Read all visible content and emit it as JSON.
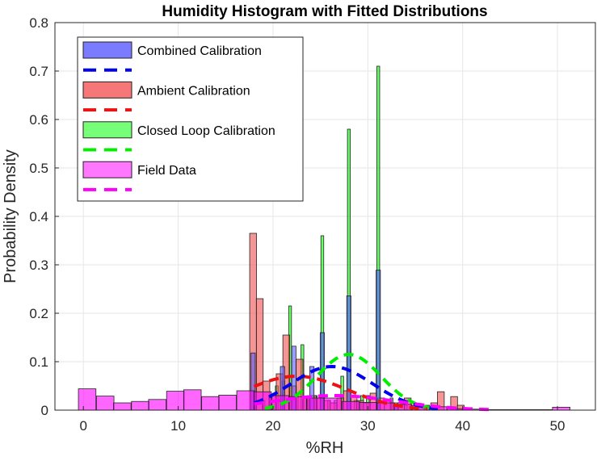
{
  "chart_data": {
    "type": "bar",
    "title": "Humidity Histogram with Fitted Distributions",
    "xlabel": "%RH",
    "ylabel": "Probability Density",
    "xlim": [
      -3,
      54
    ],
    "ylim": [
      0,
      0.8
    ],
    "xticks": [
      0,
      10,
      20,
      30,
      40,
      50
    ],
    "yticks": [
      0,
      0.1,
      0.2,
      0.3,
      0.4,
      0.5,
      0.6,
      0.7,
      0.8
    ],
    "xtick_labels": [
      "0",
      "10",
      "20",
      "30",
      "40",
      "50"
    ],
    "ytick_labels": [
      "0",
      "0.1",
      "0.2",
      "0.3",
      "0.4",
      "0.5",
      "0.6",
      "0.7",
      "0.8"
    ],
    "grid": true,
    "legend_position": "top-left",
    "series": [
      {
        "name": "Closed Loop Calibration",
        "color": "#00ff00",
        "fit_color": "#00ee00",
        "fit_mean": 28.0,
        "fit_sd": 3.4,
        "bin_width": 0.3,
        "bins": [
          {
            "x": 19.0,
            "y": 0.02
          },
          {
            "x": 19.7,
            "y": 0.03
          },
          {
            "x": 20.4,
            "y": 0.05
          },
          {
            "x": 21.1,
            "y": 0.06
          },
          {
            "x": 21.8,
            "y": 0.215
          },
          {
            "x": 22.5,
            "y": 0.03
          },
          {
            "x": 23.1,
            "y": 0.135
          },
          {
            "x": 23.8,
            "y": 0.03
          },
          {
            "x": 24.5,
            "y": 0.03
          },
          {
            "x": 25.2,
            "y": 0.36
          },
          {
            "x": 25.9,
            "y": 0.02
          },
          {
            "x": 26.6,
            "y": 0.02
          },
          {
            "x": 27.3,
            "y": 0.07
          },
          {
            "x": 28.0,
            "y": 0.58
          },
          {
            "x": 28.7,
            "y": 0.02
          },
          {
            "x": 29.4,
            "y": 0.03
          },
          {
            "x": 30.0,
            "y": 0.03
          },
          {
            "x": 31.1,
            "y": 0.71
          },
          {
            "x": 32.5,
            "y": 0.025
          },
          {
            "x": 34.0,
            "y": 0.01
          }
        ]
      },
      {
        "name": "Ambient Calibration",
        "color": "#f04e4e",
        "fit_color": "#ee1111",
        "fit_mean": 22.5,
        "fit_sd": 5.3,
        "bin_width": 0.72,
        "bins": [
          {
            "x": 17.9,
            "y": 0.365
          },
          {
            "x": 18.6,
            "y": 0.23
          },
          {
            "x": 19.3,
            "y": 0.06
          },
          {
            "x": 20.0,
            "y": 0.03
          },
          {
            "x": 20.7,
            "y": 0.075
          },
          {
            "x": 21.4,
            "y": 0.155
          },
          {
            "x": 22.1,
            "y": 0.05
          },
          {
            "x": 22.8,
            "y": 0.105
          },
          {
            "x": 23.5,
            "y": 0.025
          },
          {
            "x": 24.2,
            "y": 0.03
          },
          {
            "x": 25.0,
            "y": 0.025
          },
          {
            "x": 25.7,
            "y": 0.02
          },
          {
            "x": 26.4,
            "y": 0.015
          },
          {
            "x": 27.1,
            "y": 0.025
          },
          {
            "x": 27.8,
            "y": 0.04
          },
          {
            "x": 28.5,
            "y": 0.03
          },
          {
            "x": 29.2,
            "y": 0.02
          },
          {
            "x": 29.9,
            "y": 0.015
          },
          {
            "x": 30.6,
            "y": 0.035
          },
          {
            "x": 31.4,
            "y": 0.025
          },
          {
            "x": 32.1,
            "y": 0.02
          },
          {
            "x": 32.8,
            "y": 0.015
          },
          {
            "x": 33.5,
            "y": 0.015
          },
          {
            "x": 34.2,
            "y": 0.025
          },
          {
            "x": 35.6,
            "y": 0.01
          },
          {
            "x": 36.3,
            "y": 0.005
          },
          {
            "x": 37.0,
            "y": 0.015
          },
          {
            "x": 37.7,
            "y": 0.038
          },
          {
            "x": 39.1,
            "y": 0.028
          },
          {
            "x": 39.8,
            "y": 0.01
          }
        ]
      },
      {
        "name": "Combined Calibration",
        "color": "#5a5aff",
        "fit_color": "#0000ee",
        "fit_mean": 26.2,
        "fit_sd": 4.3,
        "bin_width": 0.45,
        "bins": [
          {
            "x": 17.9,
            "y": 0.118
          },
          {
            "x": 21.0,
            "y": 0.09
          },
          {
            "x": 22.2,
            "y": 0.132
          },
          {
            "x": 24.1,
            "y": 0.09
          },
          {
            "x": 25.2,
            "y": 0.16
          },
          {
            "x": 28.0,
            "y": 0.236
          },
          {
            "x": 31.1,
            "y": 0.289
          },
          {
            "x": 33.0,
            "y": 0.01
          }
        ]
      },
      {
        "name": "Field Data",
        "color": "#ff00ff",
        "fit_color": "#ff00ff",
        "fit_mean": 26.5,
        "fit_sd": 6.5,
        "bin_width": 1.85,
        "bins": [
          {
            "x": 0.4,
            "y": 0.044
          },
          {
            "x": 2.3,
            "y": 0.029
          },
          {
            "x": 4.1,
            "y": 0.015
          },
          {
            "x": 6.0,
            "y": 0.018
          },
          {
            "x": 7.8,
            "y": 0.022
          },
          {
            "x": 9.7,
            "y": 0.039
          },
          {
            "x": 11.5,
            "y": 0.042
          },
          {
            "x": 13.4,
            "y": 0.028
          },
          {
            "x": 15.2,
            "y": 0.031
          },
          {
            "x": 17.1,
            "y": 0.04
          },
          {
            "x": 18.9,
            "y": 0.038
          },
          {
            "x": 20.8,
            "y": 0.03
          },
          {
            "x": 22.6,
            "y": 0.028
          },
          {
            "x": 24.5,
            "y": 0.025
          },
          {
            "x": 26.3,
            "y": 0.025
          },
          {
            "x": 28.2,
            "y": 0.018
          },
          {
            "x": 30.0,
            "y": 0.016
          },
          {
            "x": 31.9,
            "y": 0.015
          },
          {
            "x": 33.7,
            "y": 0.012
          },
          {
            "x": 35.6,
            "y": 0.01
          },
          {
            "x": 37.4,
            "y": 0.007
          },
          {
            "x": 39.3,
            "y": 0.003
          },
          {
            "x": 41.1,
            "y": 0.002
          },
          {
            "x": 43.0,
            "y": 0.001
          },
          {
            "x": 44.8,
            "y": 0.001
          },
          {
            "x": 46.7,
            "y": 0.001
          },
          {
            "x": 48.5,
            "y": 0.001
          },
          {
            "x": 50.4,
            "y": 0.006
          }
        ]
      }
    ],
    "legend": [
      {
        "label": "Combined Calibration",
        "kind": "patch",
        "color": "#7b7bff"
      },
      {
        "label": "",
        "kind": "dash",
        "color": "#0000ee"
      },
      {
        "label": "Ambient Calibration",
        "kind": "patch",
        "color": "#f57777"
      },
      {
        "label": "",
        "kind": "dash",
        "color": "#ee1111"
      },
      {
        "label": "Closed Loop Calibration",
        "kind": "patch",
        "color": "#77ff77"
      },
      {
        "label": "",
        "kind": "dash",
        "color": "#00ee00"
      },
      {
        "label": "Field Data",
        "kind": "patch",
        "color": "#ff77ff"
      },
      {
        "label": "",
        "kind": "dash",
        "color": "#ff00ff"
      }
    ]
  }
}
